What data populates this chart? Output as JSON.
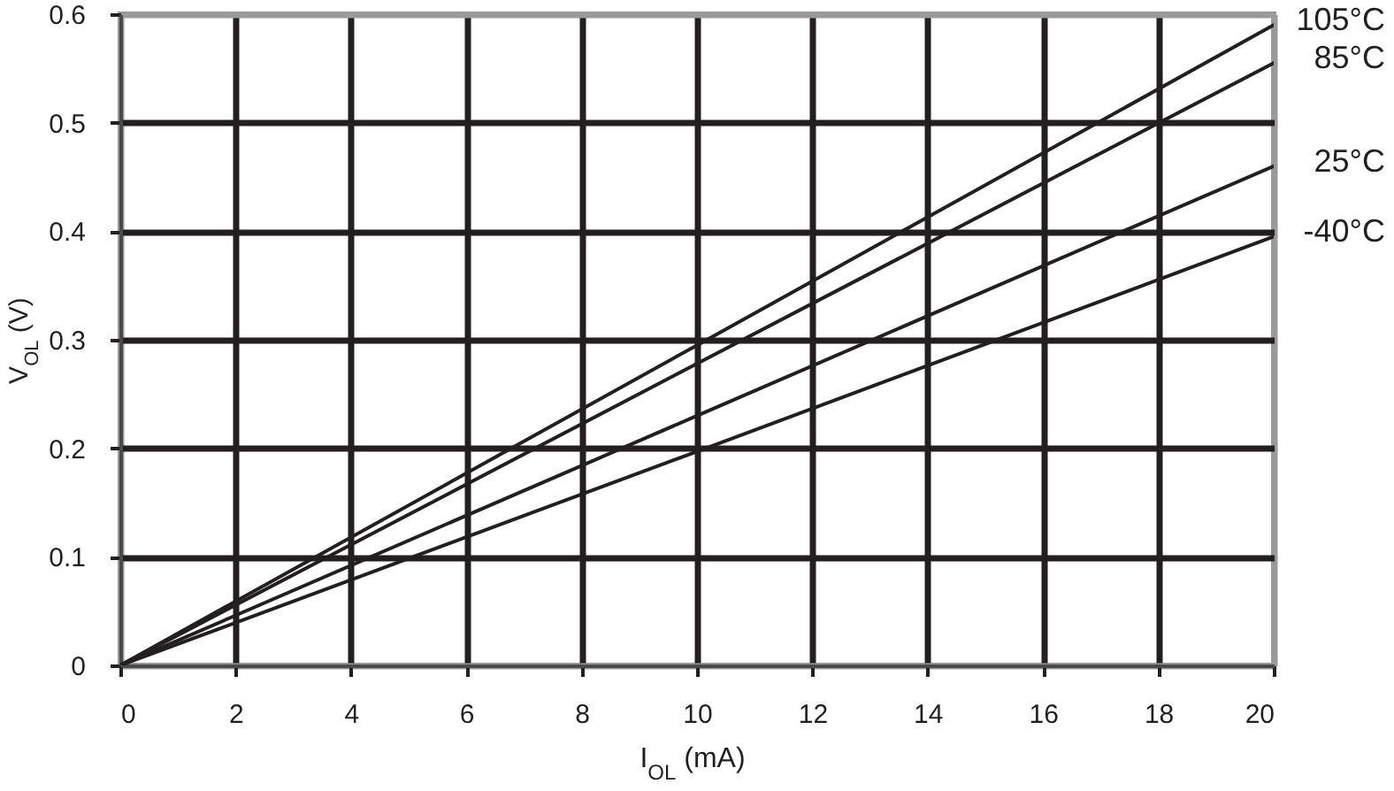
{
  "chart_data": {
    "type": "line",
    "xlabel": "I$_{OL}$ (mA)",
    "ylabel": "V$_{OL}$ (V)",
    "x": [
      0,
      10,
      20
    ],
    "series": [
      {
        "name": "105°C",
        "color": "#231f20",
        "values": [
          0,
          0.295,
          0.59
        ]
      },
      {
        "name": "85°C",
        "color": "#231f20",
        "values": [
          0,
          0.278,
          0.555
        ]
      },
      {
        "name": "25°C",
        "color": "#231f20",
        "values": [
          0,
          0.23,
          0.46
        ]
      },
      {
        "name": "-40°C",
        "color": "#231f20",
        "values": [
          0,
          0.197,
          0.395
        ]
      }
    ],
    "xlim": [
      0,
      20
    ],
    "xticks": [
      0,
      2,
      4,
      6,
      8,
      10,
      12,
      14,
      16,
      18,
      20
    ],
    "ylim": [
      0,
      0.6
    ],
    "yticks": [
      0,
      0.1,
      0.2,
      0.3,
      0.4,
      0.5,
      0.6
    ],
    "grid": true,
    "legend": false,
    "marker": "none",
    "line_style": "solid"
  }
}
